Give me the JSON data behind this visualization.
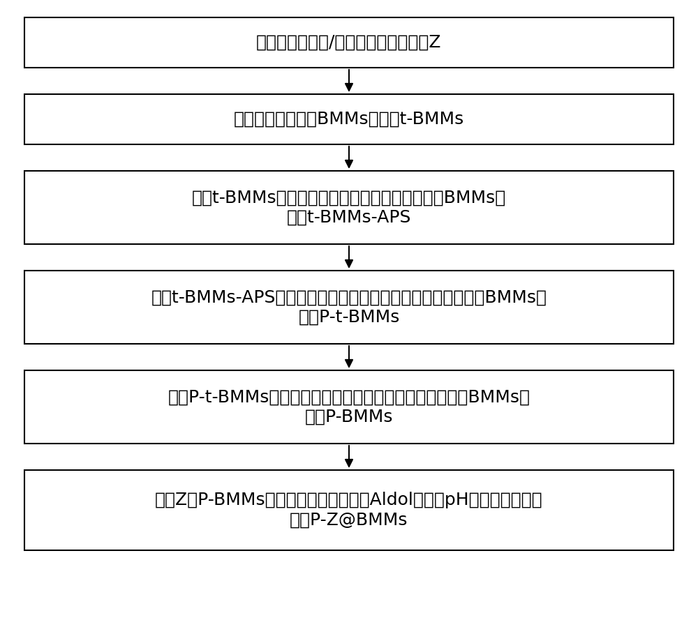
{
  "background_color": "#ffffff",
  "box_bg": "#ffffff",
  "box_border": "#000000",
  "arrow_color": "#000000",
  "text_color": "#000000",
  "font_size": 18,
  "boxes": [
    {
      "lines": [
        "制备手性联吡啶/联芳基脯氨酸衍生物Z"
      ],
      "single_line": true
    },
    {
      "lines": [
        "制备未脱模板剂的BMMs，记为t-BMMs"
      ],
      "single_line": true
    },
    {
      "lines": [
        "基于t-BMMs，制备氨基基团修饰的未脱模板剂的BMMs，",
        "记为t-BMMs-APS"
      ],
      "single_line": false
    },
    {
      "lines": [
        "基于t-BMMs-APS，制备聚丙烯酸类衍生物包覆的未脱模板剂的BMMs，",
        "记为P-t-BMMs"
      ],
      "single_line": false
    },
    {
      "lines": [
        "基于P-t-BMMs，制备聚丙烯酸类衍生物包覆的脱模板剂的BMMs，",
        "记为P-BMMs"
      ],
      "single_line": false
    },
    {
      "lines": [
        "基于Z和P-BMMs，制备用于催化不对称Aldol反应的pH敏感型催化剂，",
        "记为P-Z@BMMs"
      ],
      "single_line": false
    }
  ]
}
